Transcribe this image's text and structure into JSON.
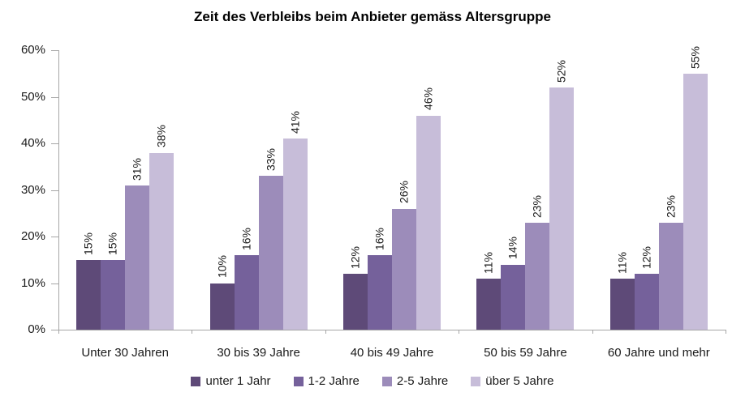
{
  "chart_data": {
    "type": "bar",
    "title": "Zeit des Verbleibs beim Anbieter gemäss Altersgruppe",
    "categories": [
      "Unter 30 Jahren",
      "30 bis 39 Jahre",
      "40 bis 49 Jahre",
      "50 bis 59 Jahre",
      "60 Jahre und mehr"
    ],
    "series": [
      {
        "name": "unter 1 Jahr",
        "color": "#5e4a78",
        "values": [
          15,
          10,
          12,
          11,
          11
        ]
      },
      {
        "name": "1-2 Jahre",
        "color": "#75619b",
        "values": [
          15,
          16,
          16,
          14,
          12
        ]
      },
      {
        "name": "2-5 Jahre",
        "color": "#9c8cba",
        "values": [
          31,
          33,
          26,
          23,
          23
        ]
      },
      {
        "name": "über 5 Jahre",
        "color": "#c7bdd9",
        "values": [
          38,
          41,
          46,
          52,
          55
        ]
      }
    ],
    "value_suffix": "%",
    "data_labels": [
      [
        "15%",
        "15%",
        "31%",
        "38%"
      ],
      [
        "10%",
        "16%",
        "33%",
        "41%"
      ],
      [
        "12%",
        "16%",
        "26%",
        "46%"
      ],
      [
        "11%",
        "14%",
        "23%",
        "52%"
      ],
      [
        "11%",
        "12%",
        "23%",
        "55%"
      ]
    ],
    "xlabel": "",
    "ylabel": "",
    "ylim": [
      0,
      60
    ],
    "ytick_step": 10,
    "yticks": [
      "0%",
      "10%",
      "20%",
      "30%",
      "40%",
      "50%",
      "60%"
    ],
    "grid": false,
    "legend_position": "bottom",
    "axis_color": "#a6a6a6"
  }
}
